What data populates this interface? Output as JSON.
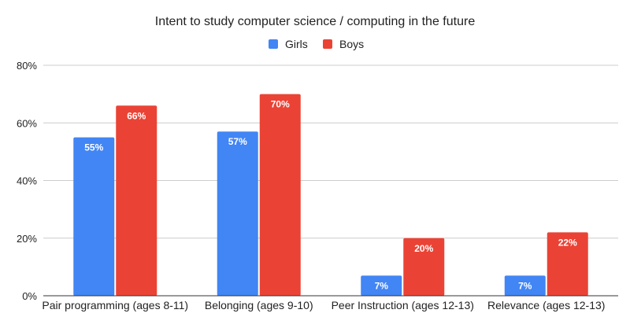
{
  "chart_data": {
    "type": "bar",
    "title": "Intent to study computer science / computing in the future",
    "xlabel": "",
    "ylabel": "",
    "categories": [
      "Pair programming (ages 8-11)",
      "Belonging (ages 9-10)",
      "Peer Instruction (ages 12-13)",
      "Relevance (ages 12-13)"
    ],
    "series": [
      {
        "name": "Girls",
        "color": "#4285f4",
        "values": [
          55,
          57,
          7,
          7
        ],
        "labels": [
          "55%",
          "57%",
          "7%",
          "7%"
        ]
      },
      {
        "name": "Boys",
        "color": "#ea4335",
        "values": [
          66,
          70,
          20,
          22
        ],
        "labels": [
          "66%",
          "70%",
          "20%",
          "22%"
        ]
      }
    ],
    "ylim": [
      0,
      80
    ],
    "yticks": [
      0,
      20,
      40,
      60,
      80
    ],
    "ytick_labels": [
      "0%",
      "20%",
      "40%",
      "60%",
      "80%"
    ],
    "grid": true,
    "legend_position": "top-center",
    "gridline_color": "#cccccc",
    "axis_color": "#333333"
  }
}
